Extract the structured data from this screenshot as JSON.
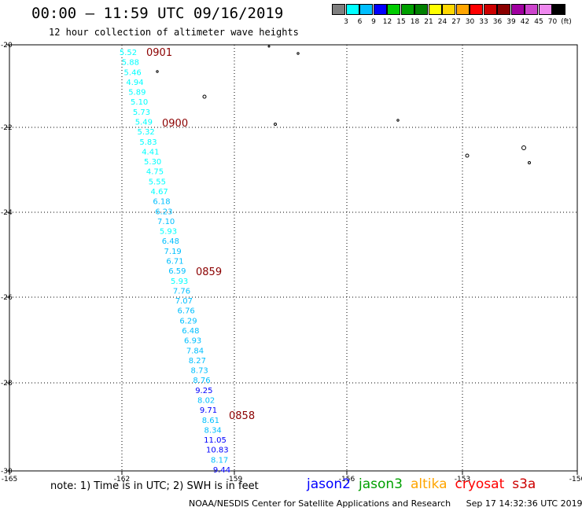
{
  "title": "00:00 – 11:59 UTC 09/16/2019",
  "subtitle": "12 hour collection of altimeter wave heights",
  "colorbar": {
    "colors": [
      "#7f7f7f",
      "#00ffff",
      "#00bfff",
      "#0000ff",
      "#00cc00",
      "#00a000",
      "#008000",
      "#ffff00",
      "#ffd700",
      "#ffa500",
      "#ff0000",
      "#cc0000",
      "#8b0000",
      "#a000a0",
      "#cc44cc",
      "#ee88ee",
      "#000000"
    ],
    "labels": [
      "3",
      "6",
      "9",
      "12",
      "15",
      "18",
      "21",
      "24",
      "27",
      "30",
      "33",
      "36",
      "39",
      "42",
      "45",
      "70",
      "(ft)"
    ]
  },
  "axes": {
    "lon_ticks": [
      "-165",
      "-162",
      "-159",
      "-156",
      "-153",
      "-150"
    ],
    "lat_ticks": [
      "-20",
      "-22",
      "-24",
      "-26",
      "-28",
      "-30"
    ]
  },
  "time_labels": [
    "0901",
    "0900",
    "0859",
    "0858"
  ],
  "observations": [
    {
      "v": "5.52",
      "c": "#00ffff"
    },
    {
      "v": "5.88",
      "c": "#00ffff"
    },
    {
      "v": "5.46",
      "c": "#00ffff"
    },
    {
      "v": "4.94",
      "c": "#00ffff"
    },
    {
      "v": "5.89",
      "c": "#00ffff"
    },
    {
      "v": "5.10",
      "c": "#00ffff"
    },
    {
      "v": "5.73",
      "c": "#00ffff"
    },
    {
      "v": "5.49",
      "c": "#00ffff"
    },
    {
      "v": "5.32",
      "c": "#00ffff"
    },
    {
      "v": "5.83",
      "c": "#00ffff"
    },
    {
      "v": "4.41",
      "c": "#00ffff"
    },
    {
      "v": "5.30",
      "c": "#00ffff"
    },
    {
      "v": "4.75",
      "c": "#00ffff"
    },
    {
      "v": "5.55",
      "c": "#00ffff"
    },
    {
      "v": "4.67",
      "c": "#00ffff"
    },
    {
      "v": "6.18",
      "c": "#00bfff"
    },
    {
      "v": "6.23",
      "c": "#00bfff"
    },
    {
      "v": "7.10",
      "c": "#00bfff"
    },
    {
      "v": "5.93",
      "c": "#00ffff"
    },
    {
      "v": "6.48",
      "c": "#00bfff"
    },
    {
      "v": "7.19",
      "c": "#00bfff"
    },
    {
      "v": "6.71",
      "c": "#00bfff"
    },
    {
      "v": "6.59",
      "c": "#00bfff"
    },
    {
      "v": "5.93",
      "c": "#00ffff"
    },
    {
      "v": "7.76",
      "c": "#00bfff"
    },
    {
      "v": "7.07",
      "c": "#00bfff"
    },
    {
      "v": "6.76",
      "c": "#00bfff"
    },
    {
      "v": "6.29",
      "c": "#00bfff"
    },
    {
      "v": "6.48",
      "c": "#00bfff"
    },
    {
      "v": "6.93",
      "c": "#00bfff"
    },
    {
      "v": "7.84",
      "c": "#00bfff"
    },
    {
      "v": "8.27",
      "c": "#00bfff"
    },
    {
      "v": "8.73",
      "c": "#00bfff"
    },
    {
      "v": "8.76",
      "c": "#00bfff"
    },
    {
      "v": "9.25",
      "c": "#0000ff"
    },
    {
      "v": "8.02",
      "c": "#00bfff"
    },
    {
      "v": "9.71",
      "c": "#0000ff"
    },
    {
      "v": "8.61",
      "c": "#00bfff"
    },
    {
      "v": "8.34",
      "c": "#00bfff"
    },
    {
      "v": "11.05",
      "c": "#0000ff"
    },
    {
      "v": "10.83",
      "c": "#0000ff"
    },
    {
      "v": "8.17",
      "c": "#00bfff"
    },
    {
      "v": "9.44",
      "c": "#0000ff"
    }
  ],
  "note": "note: 1) Time is in UTC; 2) SWH is in feet",
  "satellites": [
    {
      "name": "jason2",
      "color": "#0000ff"
    },
    {
      "name": "jason3",
      "color": "#00a000"
    },
    {
      "name": "altika",
      "color": "#ffa500"
    },
    {
      "name": "cryosat",
      "color": "#ff0000"
    },
    {
      "name": "s3a",
      "color": "#cc0000"
    }
  ],
  "credit": "NOAA/NESDIS Center for Satellite Applications and Research",
  "timestamp": "Sep 17 14:32:36 UTC 2019"
}
